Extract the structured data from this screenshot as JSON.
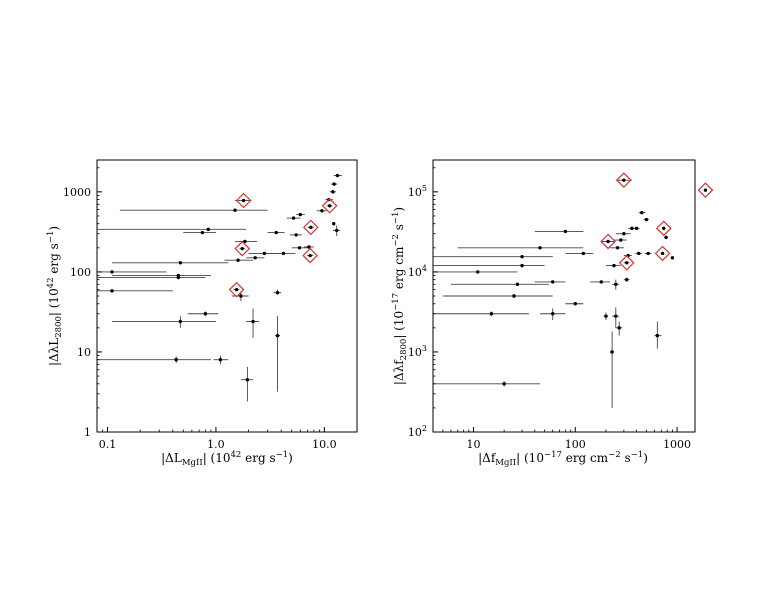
{
  "figure": {
    "colors": {
      "points": "#000000",
      "errorbars": "#444444",
      "highlight": "#e03030"
    }
  },
  "chart_data": [
    {
      "type": "scatter",
      "xscale": "log",
      "yscale": "log",
      "xlim": [
        0.08,
        20
      ],
      "ylim": [
        1,
        2500
      ],
      "xlabel": "|ΔL_MgII| (10^42 erg s^-1)",
      "ylabel": "|ΔλL_2800| (10^42 erg s^-1)",
      "xticks": [
        0.1,
        1.0,
        10.0
      ],
      "xtick_labels": [
        "0.1",
        "1.0",
        "10.0"
      ],
      "yticks": [
        1,
        10,
        100,
        1000
      ],
      "ytick_labels": [
        "1",
        "10",
        "100",
        "1000"
      ],
      "grid": false,
      "points": [
        {
          "x": 0.11,
          "y": 100,
          "xlo": 0.03,
          "xhi": 0.35,
          "ylo": 100,
          "yhi": 100
        },
        {
          "x": 0.11,
          "y": 58,
          "xlo": 0.03,
          "xhi": 0.4,
          "ylo": 58,
          "yhi": 58
        },
        {
          "x": 0.45,
          "y": 90,
          "xlo": 0.11,
          "xhi": 0.9,
          "ylo": 85,
          "yhi": 95
        },
        {
          "x": 0.47,
          "y": 130,
          "xlo": 0.11,
          "xhi": 1.3,
          "ylo": 130,
          "yhi": 130
        },
        {
          "x": 0.45,
          "y": 85,
          "xlo": 0.05,
          "xhi": 0.8,
          "ylo": 82,
          "yhi": 88
        },
        {
          "x": 0.47,
          "y": 24,
          "xlo": 0.11,
          "xhi": 1.0,
          "ylo": 20,
          "yhi": 28
        },
        {
          "x": 0.43,
          "y": 8,
          "xlo": 0.03,
          "xhi": 0.9,
          "ylo": 7.3,
          "yhi": 8.8
        },
        {
          "x": 0.8,
          "y": 30,
          "xlo": 0.55,
          "xhi": 1.05,
          "ylo": 28,
          "yhi": 32
        },
        {
          "x": 0.85,
          "y": 340,
          "xlo": 0.03,
          "xhi": 1.9,
          "ylo": 330,
          "yhi": 350
        },
        {
          "x": 0.75,
          "y": 310,
          "xlo": 0.5,
          "xhi": 1.0,
          "ylo": 305,
          "yhi": 315
        },
        {
          "x": 1.1,
          "y": 8,
          "xlo": 0.95,
          "xhi": 1.3,
          "ylo": 7,
          "yhi": 9
        },
        {
          "x": 1.5,
          "y": 590,
          "xlo": 0.13,
          "xhi": 3.0,
          "ylo": 590,
          "yhi": 590
        },
        {
          "x": 1.6,
          "y": 140,
          "xlo": 1.2,
          "xhi": 2.2,
          "ylo": 135,
          "yhi": 145
        },
        {
          "x": 1.7,
          "y": 50,
          "xlo": 1.4,
          "xhi": 2.0,
          "ylo": 43,
          "yhi": 57
        },
        {
          "x": 1.85,
          "y": 240,
          "xlo": 1.5,
          "xhi": 2.4,
          "ylo": 235,
          "yhi": 245
        },
        {
          "x": 1.95,
          "y": 4.5,
          "xlo": 1.7,
          "xhi": 2.2,
          "ylo": 2.4,
          "yhi": 6.5
        },
        {
          "x": 2.2,
          "y": 24,
          "xlo": 1.9,
          "xhi": 2.5,
          "ylo": 15,
          "yhi": 35
        },
        {
          "x": 2.3,
          "y": 150,
          "xlo": 1.9,
          "xhi": 2.8,
          "ylo": 145,
          "yhi": 155
        },
        {
          "x": 2.8,
          "y": 170,
          "xlo": 2.0,
          "xhi": 3.8,
          "ylo": 165,
          "yhi": 175
        },
        {
          "x": 3.6,
          "y": 310,
          "xlo": 3.0,
          "xhi": 4.3,
          "ylo": 300,
          "yhi": 320
        },
        {
          "x": 3.7,
          "y": 16,
          "xlo": 3.5,
          "xhi": 3.9,
          "ylo": 3.2,
          "yhi": 28
        },
        {
          "x": 3.7,
          "y": 55,
          "xlo": 3.4,
          "xhi": 4.0,
          "ylo": 52,
          "yhi": 60
        },
        {
          "x": 4.2,
          "y": 170,
          "xlo": 3.0,
          "xhi": 5.4,
          "ylo": 165,
          "yhi": 175
        },
        {
          "x": 5.2,
          "y": 470,
          "xlo": 4.5,
          "xhi": 6.0,
          "ylo": 460,
          "yhi": 480
        },
        {
          "x": 5.5,
          "y": 290,
          "xlo": 4.8,
          "xhi": 6.2,
          "ylo": 285,
          "yhi": 295
        },
        {
          "x": 5.9,
          "y": 200,
          "xlo": 5.0,
          "xhi": 7.0,
          "ylo": 195,
          "yhi": 205
        },
        {
          "x": 6.0,
          "y": 520,
          "xlo": 5.5,
          "xhi": 6.6,
          "ylo": 510,
          "yhi": 530
        },
        {
          "x": 7.2,
          "y": 205,
          "xlo": 6.5,
          "xhi": 8.0,
          "ylo": 200,
          "yhi": 210
        },
        {
          "x": 9.5,
          "y": 580,
          "xlo": 8.5,
          "xhi": 10.5,
          "ylo": 570,
          "yhi": 590
        },
        {
          "x": 11.0,
          "y": 800,
          "xlo": 10.2,
          "xhi": 12.0,
          "ylo": 780,
          "yhi": 820
        },
        {
          "x": 12.0,
          "y": 1000,
          "xlo": 11.2,
          "xhi": 12.8,
          "ylo": 980,
          "yhi": 1020
        },
        {
          "x": 12.2,
          "y": 400,
          "xlo": 11.8,
          "xhi": 12.6,
          "ylo": 390,
          "yhi": 410
        },
        {
          "x": 12.3,
          "y": 1250,
          "xlo": 11.5,
          "xhi": 13.2,
          "ylo": 1230,
          "yhi": 1270
        },
        {
          "x": 13.2,
          "y": 1600,
          "xlo": 12.2,
          "xhi": 14.5,
          "ylo": 1580,
          "yhi": 1620
        },
        {
          "x": 13.0,
          "y": 330,
          "xlo": 12.0,
          "xhi": 14.0,
          "ylo": 280,
          "yhi": 380
        }
      ],
      "highlighted": [
        {
          "x": 1.55,
          "y": 60,
          "xlo": 1.45,
          "xhi": 1.65,
          "ylo": 60,
          "yhi": 60
        },
        {
          "x": 1.75,
          "y": 195,
          "xlo": 1.65,
          "xhi": 1.85,
          "ylo": 195,
          "yhi": 195
        },
        {
          "x": 1.8,
          "y": 780,
          "xlo": 1.5,
          "xhi": 2.1,
          "ylo": 780,
          "yhi": 780
        },
        {
          "x": 7.4,
          "y": 160,
          "xlo": 6.9,
          "xhi": 7.9,
          "ylo": 160,
          "yhi": 160
        },
        {
          "x": 7.5,
          "y": 360,
          "xlo": 7.0,
          "xhi": 8.0,
          "ylo": 360,
          "yhi": 360
        },
        {
          "x": 11.2,
          "y": 670,
          "xlo": 10.5,
          "xhi": 11.9,
          "ylo": 670,
          "yhi": 670
        }
      ]
    },
    {
      "type": "scatter",
      "xscale": "log",
      "yscale": "log",
      "xlim": [
        4,
        1500
      ],
      "ylim": [
        100,
        250000
      ],
      "xlabel": "|Δf_MgII| (10^-17 erg cm^-2 s^-1)",
      "ylabel": "|Δλf_2800| (10^-17 erg cm^-2 s^-1)",
      "xticks": [
        10,
        100,
        1000
      ],
      "xtick_labels": [
        "10",
        "100",
        "1000"
      ],
      "yticks": [
        100,
        1000,
        10000,
        100000
      ],
      "ytick_labels": [
        "10^2",
        "10^3",
        "10^4",
        "10^5"
      ],
      "grid": false,
      "points": [
        {
          "x": 20,
          "y": 400,
          "xlo": 2,
          "xhi": 45,
          "ylo": 370,
          "yhi": 430
        },
        {
          "x": 15,
          "y": 3000,
          "xlo": 1,
          "xhi": 35,
          "ylo": 2800,
          "yhi": 3200
        },
        {
          "x": 25,
          "y": 5000,
          "xlo": 5,
          "xhi": 60,
          "ylo": 4700,
          "yhi": 5300
        },
        {
          "x": 27,
          "y": 7000,
          "xlo": 6,
          "xhi": 55,
          "ylo": 6800,
          "yhi": 7200
        },
        {
          "x": 11,
          "y": 10000,
          "xlo": 2,
          "xhi": 27,
          "ylo": 10000,
          "yhi": 10000
        },
        {
          "x": 30,
          "y": 12000,
          "xlo": 2,
          "xhi": 50,
          "ylo": 12000,
          "yhi": 12000
        },
        {
          "x": 30,
          "y": 15500,
          "xlo": 2,
          "xhi": 60,
          "ylo": 15500,
          "yhi": 15500
        },
        {
          "x": 45,
          "y": 20000,
          "xlo": 7,
          "xhi": 120,
          "ylo": 20000,
          "yhi": 20000
        },
        {
          "x": 80,
          "y": 32000,
          "xlo": 40,
          "xhi": 120,
          "ylo": 31000,
          "yhi": 33000
        },
        {
          "x": 60,
          "y": 7500,
          "xlo": 40,
          "xhi": 80,
          "ylo": 7300,
          "yhi": 7700
        },
        {
          "x": 60,
          "y": 3000,
          "xlo": 45,
          "xhi": 80,
          "ylo": 2500,
          "yhi": 3500
        },
        {
          "x": 100,
          "y": 4000,
          "xlo": 80,
          "xhi": 120,
          "ylo": 3800,
          "yhi": 4200
        },
        {
          "x": 120,
          "y": 17000,
          "xlo": 80,
          "xhi": 150,
          "ylo": 16800,
          "yhi": 17200
        },
        {
          "x": 180,
          "y": 7500,
          "xlo": 140,
          "xhi": 220,
          "ylo": 7300,
          "yhi": 7700
        },
        {
          "x": 200,
          "y": 2800,
          "xlo": 190,
          "xhi": 210,
          "ylo": 2500,
          "yhi": 3100
        },
        {
          "x": 230,
          "y": 1000,
          "xlo": 220,
          "xhi": 240,
          "ylo": 200,
          "yhi": 1800
        },
        {
          "x": 250,
          "y": 2800,
          "xlo": 230,
          "xhi": 270,
          "ylo": 2000,
          "yhi": 3600
        },
        {
          "x": 270,
          "y": 2000,
          "xlo": 250,
          "xhi": 290,
          "ylo": 1600,
          "yhi": 2400
        },
        {
          "x": 250,
          "y": 7000,
          "xlo": 230,
          "xhi": 270,
          "ylo": 6000,
          "yhi": 8000
        },
        {
          "x": 240,
          "y": 12000,
          "xlo": 200,
          "xhi": 280,
          "ylo": 11500,
          "yhi": 12500
        },
        {
          "x": 260,
          "y": 20000,
          "xlo": 220,
          "xhi": 300,
          "ylo": 19500,
          "yhi": 20500
        },
        {
          "x": 280,
          "y": 25000,
          "xlo": 240,
          "xhi": 320,
          "ylo": 24500,
          "yhi": 25500
        },
        {
          "x": 300,
          "y": 30000,
          "xlo": 250,
          "xhi": 350,
          "ylo": 29500,
          "yhi": 30500
        },
        {
          "x": 320,
          "y": 8000,
          "xlo": 300,
          "xhi": 340,
          "ylo": 7500,
          "yhi": 8500
        },
        {
          "x": 330,
          "y": 16000,
          "xlo": 300,
          "xhi": 360,
          "ylo": 15800,
          "yhi": 16200
        },
        {
          "x": 360,
          "y": 35000,
          "xlo": 330,
          "xhi": 400,
          "ylo": 34500,
          "yhi": 35500
        },
        {
          "x": 400,
          "y": 35000,
          "xlo": 370,
          "xhi": 430,
          "ylo": 34500,
          "yhi": 35500
        },
        {
          "x": 420,
          "y": 17000,
          "xlo": 390,
          "xhi": 450,
          "ylo": 16800,
          "yhi": 17200
        },
        {
          "x": 450,
          "y": 55000,
          "xlo": 420,
          "xhi": 490,
          "ylo": 54000,
          "yhi": 56000
        },
        {
          "x": 500,
          "y": 45000,
          "xlo": 470,
          "xhi": 530,
          "ylo": 44000,
          "yhi": 46000
        },
        {
          "x": 520,
          "y": 17000,
          "xlo": 480,
          "xhi": 560,
          "ylo": 16800,
          "yhi": 17200
        },
        {
          "x": 640,
          "y": 1600,
          "xlo": 600,
          "xhi": 700,
          "ylo": 1100,
          "yhi": 2400
        },
        {
          "x": 780,
          "y": 27000,
          "xlo": 750,
          "xhi": 810,
          "ylo": 26500,
          "yhi": 27500
        },
        {
          "x": 900,
          "y": 15000,
          "xlo": 870,
          "xhi": 930,
          "ylo": 14800,
          "yhi": 15200
        }
      ],
      "highlighted": [
        {
          "x": 210,
          "y": 24000,
          "xlo": 180,
          "xhi": 240,
          "ylo": 24000,
          "yhi": 24000
        },
        {
          "x": 300,
          "y": 140000,
          "xlo": 250,
          "xhi": 360,
          "ylo": 140000,
          "yhi": 140000
        },
        {
          "x": 320,
          "y": 13000,
          "xlo": 300,
          "xhi": 340,
          "ylo": 13000,
          "yhi": 13000
        },
        {
          "x": 720,
          "y": 17000,
          "xlo": 690,
          "xhi": 750,
          "ylo": 17000,
          "yhi": 17000
        },
        {
          "x": 740,
          "y": 35000,
          "xlo": 710,
          "xhi": 770,
          "ylo": 35000,
          "yhi": 35000
        },
        {
          "x": 1900,
          "y": 105000,
          "xlo": 1850,
          "xhi": 1950,
          "ylo": 105000,
          "yhi": 105000
        }
      ]
    }
  ]
}
